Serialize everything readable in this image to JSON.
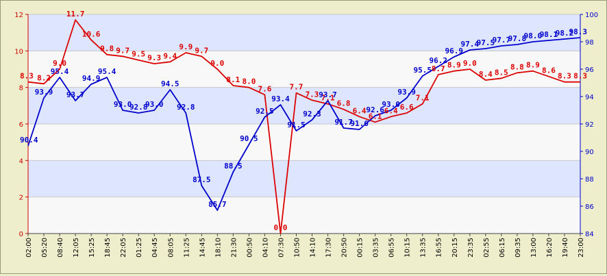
{
  "chart_data": {
    "type": "line",
    "title": "",
    "xlabel": "",
    "ylabel_left": "",
    "ylabel_right": "",
    "grid": true,
    "background_bands": true,
    "colors": {
      "background": "#eeeecc",
      "plot_band_light": "#f8f8f8",
      "plot_band_blue": "#dde5ff",
      "left_axis": "#cc0000",
      "right_axis": "#0000cc"
    },
    "x_tick_labels": [
      "02:00",
      "05:20",
      "08:40",
      "12:05",
      "15:25",
      "18:45",
      "22:05",
      "01:25",
      "04:45",
      "08:05",
      "11:25",
      "14:45",
      "18:10",
      "21:30",
      "00:50",
      "04:10",
      "07:30",
      "10:50",
      "14:10",
      "17:30",
      "20:50",
      "00:15",
      "03:35",
      "06:55",
      "10:15",
      "13:35",
      "16:55",
      "20:15",
      "23:35",
      "02:55",
      "06:15",
      "09:35",
      "13:00",
      "16:20",
      "19:40",
      "23:00"
    ],
    "y_left": {
      "min": 0,
      "max": 12,
      "ticks": [
        0,
        2,
        4,
        6,
        8,
        10,
        12
      ]
    },
    "y_right": {
      "min": 84,
      "max": 100,
      "ticks": [
        84,
        86,
        88,
        90,
        92,
        94,
        96,
        98,
        100
      ]
    },
    "series": [
      {
        "axis": "left",
        "color": "#dd0000",
        "points": [
          [
            0,
            8.3
          ],
          [
            1,
            8.2
          ],
          [
            2,
            9.0
          ],
          [
            3,
            11.7
          ],
          [
            4,
            10.6
          ],
          [
            5,
            9.8
          ],
          [
            6,
            9.7
          ],
          [
            7,
            9.5
          ],
          [
            8,
            9.3
          ],
          [
            9,
            9.4
          ],
          [
            10,
            9.9
          ],
          [
            11,
            9.7
          ],
          [
            12,
            9.0
          ],
          [
            13,
            8.1
          ],
          [
            14,
            8.0
          ],
          [
            15,
            7.6
          ],
          [
            16,
            0.0
          ],
          [
            17,
            7.7
          ],
          [
            18,
            7.3
          ],
          [
            19,
            7.1
          ],
          [
            20,
            6.8
          ],
          [
            21,
            6.4
          ],
          [
            22,
            6.1
          ],
          [
            23,
            6.4
          ],
          [
            24,
            6.6
          ],
          [
            25,
            7.1
          ],
          [
            26,
            8.7
          ],
          [
            27,
            8.9
          ],
          [
            28,
            9.0
          ],
          [
            29,
            8.4
          ],
          [
            30,
            8.5
          ],
          [
            31,
            8.8
          ],
          [
            32,
            8.9
          ],
          [
            33,
            8.6
          ],
          [
            34,
            8.3
          ],
          [
            35,
            8.3
          ]
        ],
        "labels": [
          "8.3",
          "8.2",
          "9.0",
          "11.7",
          "10.6",
          "9.8",
          "9.7",
          "9.5",
          "9.3",
          "9.4",
          "9.9",
          "9.7",
          "9.0",
          "8.1",
          "8.0",
          "7.6",
          "0.0",
          "7.7",
          "7.3",
          "7.1",
          "6.8",
          "6.4",
          "6.1",
          "6.4",
          "6.6",
          "7.1",
          "8.7",
          "8.9",
          "9.0",
          "8.4",
          "8.5",
          "8.8",
          "8.9",
          "8.6",
          "8.3",
          "8.3"
        ]
      },
      {
        "axis": "right",
        "color": "#0000cc",
        "points": [
          [
            0,
            90.4
          ],
          [
            1,
            93.9
          ],
          [
            2,
            95.4
          ],
          [
            3,
            93.7
          ],
          [
            4,
            94.9
          ],
          [
            5,
            95.4
          ],
          [
            6,
            93.0
          ],
          [
            7,
            92.8
          ],
          [
            8,
            93.0
          ],
          [
            9,
            94.5
          ],
          [
            10,
            92.8
          ],
          [
            11,
            87.5
          ],
          [
            12,
            85.7
          ],
          [
            13,
            88.5
          ],
          [
            14,
            90.5
          ],
          [
            15,
            92.5
          ],
          [
            16,
            93.4
          ],
          [
            17,
            91.5
          ],
          [
            18,
            92.3
          ],
          [
            19,
            93.7
          ],
          [
            20,
            91.7
          ],
          [
            21,
            91.6
          ],
          [
            22,
            92.6
          ],
          [
            23,
            93.0
          ],
          [
            24,
            93.9
          ],
          [
            25,
            95.5
          ],
          [
            26,
            96.2
          ],
          [
            27,
            96.9
          ],
          [
            28,
            97.4
          ],
          [
            29,
            97.5
          ],
          [
            30,
            97.7
          ],
          [
            31,
            97.8
          ],
          [
            32,
            98.0
          ],
          [
            33,
            98.1
          ],
          [
            34,
            98.2
          ],
          [
            35,
            98.3
          ]
        ],
        "labels": [
          "90.4",
          "93.9",
          "95.4",
          "93.7",
          "94.9",
          "95.4",
          "93.0",
          "92.8",
          "93.0",
          "94.5",
          "92.8",
          "87.5",
          "85.7",
          "88.5",
          "90.5",
          "92.5",
          "93.4",
          "91.5",
          "92.3",
          "93.7",
          "91.7",
          "91.6",
          "92.6",
          "93.0",
          "93.9",
          "95.5",
          "96.2",
          "96.9",
          "97.4",
          "97.5",
          "97.7",
          "97.8",
          "98.0",
          "98.1",
          "98.2",
          "98.3"
        ]
      }
    ]
  }
}
